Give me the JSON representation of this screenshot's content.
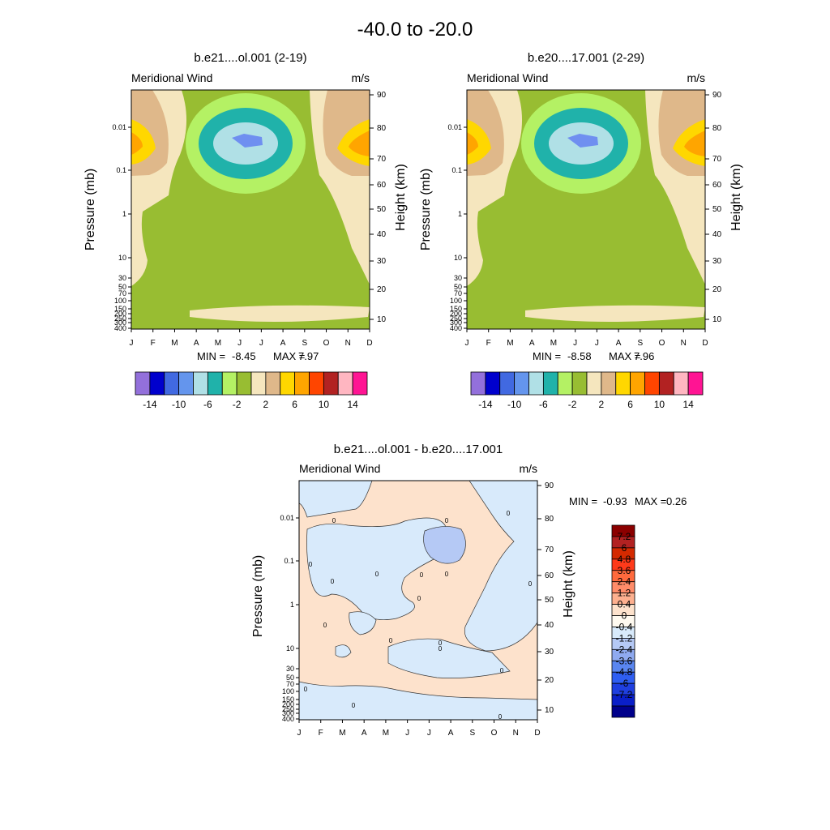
{
  "figure_title": "-40.0 to -20.0",
  "chart_data": [
    {
      "type": "contour",
      "title": "b.e21....ol.001 (2-19)",
      "variable": "Meridional Wind",
      "units": "m/s",
      "xlabel": "",
      "ylabel_left": "Pressure (mb)",
      "ylabel_right": "Height (km)",
      "x_ticks": [
        "J",
        "F",
        "M",
        "A",
        "M",
        "J",
        "J",
        "A",
        "S",
        "O",
        "N",
        "D"
      ],
      "pressure_ticks": [
        "0.01",
        "0.1",
        "1",
        "10",
        "30",
        "50",
        "70",
        "100",
        "150",
        "200",
        "250",
        "300",
        "400"
      ],
      "height_ticks": [
        "10",
        "20",
        "30",
        "40",
        "50",
        "60",
        "70",
        "80",
        "90"
      ],
      "min_label": "MIN =",
      "min_value": "-8.45",
      "max_label": "MAX =",
      "max_value": "7.97",
      "colorbar_labels": [
        "-14",
        "-10",
        "-6",
        "-2",
        "2",
        "6",
        "10",
        "14"
      ],
      "colorbar_colors": [
        "#9370db",
        "#0000cd",
        "#4169e1",
        "#6495ed",
        "#b0e0e6",
        "#20b2aa",
        "#b4f164",
        "#98bd32",
        "#f5e6be",
        "#dfb88a",
        "#ffd700",
        "#ffa500",
        "#ff4500",
        "#b22222",
        "#ffb6c1",
        "#ff1493"
      ]
    },
    {
      "type": "contour",
      "title": "b.e20....17.001 (2-29)",
      "variable": "Meridional Wind",
      "units": "m/s",
      "xlabel": "",
      "ylabel_left": "Pressure (mb)",
      "ylabel_right": "Height (km)",
      "x_ticks": [
        "J",
        "F",
        "M",
        "A",
        "M",
        "J",
        "J",
        "A",
        "S",
        "O",
        "N",
        "D"
      ],
      "pressure_ticks": [
        "0.01",
        "0.1",
        "1",
        "10",
        "30",
        "50",
        "70",
        "100",
        "150",
        "200",
        "250",
        "300",
        "400"
      ],
      "height_ticks": [
        "10",
        "20",
        "30",
        "40",
        "50",
        "60",
        "70",
        "80",
        "90"
      ],
      "min_label": "MIN =",
      "min_value": "-8.58",
      "max_label": "MAX =",
      "max_value": "7.96",
      "colorbar_labels": [
        "-14",
        "-10",
        "-6",
        "-2",
        "2",
        "6",
        "10",
        "14"
      ],
      "colorbar_colors": [
        "#9370db",
        "#0000cd",
        "#4169e1",
        "#6495ed",
        "#b0e0e6",
        "#20b2aa",
        "#b4f164",
        "#98bd32",
        "#f5e6be",
        "#dfb88a",
        "#ffd700",
        "#ffa500",
        "#ff4500",
        "#b22222",
        "#ffb6c1",
        "#ff1493"
      ]
    },
    {
      "type": "contour",
      "title": "b.e21....ol.001 - b.e20....17.001",
      "variable": "Meridional Wind",
      "units": "m/s",
      "xlabel": "",
      "ylabel_left": "Pressure (mb)",
      "ylabel_right": "Height (km)",
      "x_ticks": [
        "J",
        "F",
        "M",
        "A",
        "M",
        "J",
        "J",
        "A",
        "S",
        "O",
        "N",
        "D"
      ],
      "pressure_ticks": [
        "0.01",
        "0.1",
        "1",
        "10",
        "30",
        "50",
        "70",
        "100",
        "150",
        "200",
        "250",
        "300",
        "400"
      ],
      "height_ticks": [
        "10",
        "20",
        "30",
        "40",
        "50",
        "60",
        "70",
        "80",
        "90"
      ],
      "min_label": "MIN =",
      "min_value": "-0.93",
      "max_label": "MAX =",
      "max_value": "0.26",
      "contour_label": "0",
      "colorbar_labels": [
        "7.2",
        "6",
        "4.8",
        "3.6",
        "2.4",
        "1.2",
        "0.4",
        "0",
        "-0.4",
        "-1.2",
        "-2.4",
        "-3.6",
        "-4.8",
        "-6",
        "-7.2"
      ],
      "colorbar_colors": [
        "#8b0000",
        "#b22222",
        "#d42a00",
        "#ff3a1a",
        "#ff6a3d",
        "#ff8c69",
        "#fdb08f",
        "#fde2cc",
        "#fffaf0",
        "#d8eafb",
        "#b5c9f5",
        "#8faaf0",
        "#5a86f0",
        "#2f5ef2",
        "#1f3fe0",
        "#0a1fc8",
        "#00008b"
      ]
    }
  ]
}
